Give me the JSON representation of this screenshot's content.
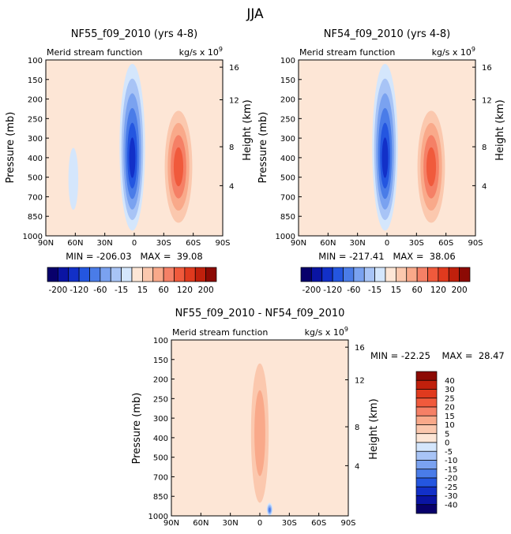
{
  "page_title": "JJA",
  "colors": {
    "neg": [
      "#08006b",
      "#0a14a3",
      "#1230c8",
      "#2456e0",
      "#4a7ce8",
      "#7aa2f0",
      "#a8c4f6",
      "#d4e6fc"
    ],
    "pos": [
      "#fde6d6",
      "#fbc8ae",
      "#f9a98a",
      "#f58066",
      "#f05a3c",
      "#e03a1e",
      "#c0200c",
      "#8c0a04"
    ]
  },
  "chart_data": [
    {
      "type": "contour",
      "title": "NF55_f09_2010 (yrs 4-8)",
      "left_string": "Merid stream function",
      "units_text": "kg/s x 10",
      "units_exp": "9",
      "ylabel": "Pressure (mb)",
      "ylabel_right": "Height (km)",
      "x_ticks": [
        "90N",
        "60N",
        "30N",
        "0",
        "30S",
        "60S",
        "90S"
      ],
      "xlim": [
        90,
        -90
      ],
      "y_ticks": [
        "100",
        "150",
        "200",
        "250",
        "300",
        "400",
        "500",
        "700",
        "850",
        "1000"
      ],
      "y_values": [
        100,
        150,
        200,
        250,
        300,
        400,
        500,
        700,
        850,
        1000
      ],
      "ylim": [
        1000,
        100
      ],
      "height_ticks": [
        "16",
        "12",
        "8",
        "4"
      ],
      "height_values": [
        16,
        12,
        8,
        4
      ],
      "min_max": "MIN = -206.03   MAX =  39.08",
      "colorbar_labels": [
        "-200",
        "-120",
        "-60",
        "-15",
        "15",
        "60",
        "120",
        "200"
      ],
      "features": [
        {
          "name": "northern-hadley-cell",
          "lat": 2,
          "p": 450,
          "value": -206.03,
          "lat_halfwidth": 13,
          "p_low": 110,
          "p_high": 960
        },
        {
          "name": "southern-cell",
          "lat": -45,
          "p": 420,
          "value": 39.08,
          "lat_halfwidth": 14,
          "p_low": 230,
          "p_high": 900
        },
        {
          "name": "northern-ferrel-cell",
          "lat": 62,
          "p": 500,
          "value": -8,
          "lat_halfwidth": 5,
          "p_low": 350,
          "p_high": 800
        }
      ]
    },
    {
      "type": "contour",
      "title": "NF54_f09_2010 (yrs 4-8)",
      "left_string": "Merid stream function",
      "units_text": "kg/s x 10",
      "units_exp": "9",
      "ylabel": "Pressure (mb)",
      "ylabel_right": "Height (km)",
      "x_ticks": [
        "90N",
        "60N",
        "30N",
        "0",
        "30S",
        "60S",
        "90S"
      ],
      "xlim": [
        90,
        -90
      ],
      "y_ticks": [
        "100",
        "150",
        "200",
        "250",
        "300",
        "400",
        "500",
        "700",
        "850",
        "1000"
      ],
      "y_values": [
        100,
        150,
        200,
        250,
        300,
        400,
        500,
        700,
        850,
        1000
      ],
      "ylim": [
        1000,
        100
      ],
      "height_ticks": [
        "16",
        "12",
        "8",
        "4"
      ],
      "height_values": [
        16,
        12,
        8,
        4
      ],
      "min_max": "MIN = -217.41   MAX =  38.06",
      "colorbar_labels": [
        "-200",
        "-120",
        "-60",
        "-15",
        "15",
        "60",
        "120",
        "200"
      ],
      "features": [
        {
          "name": "northern-hadley-cell",
          "lat": 2,
          "p": 450,
          "value": -217.41,
          "lat_halfwidth": 13,
          "p_low": 110,
          "p_high": 960
        },
        {
          "name": "southern-cell",
          "lat": -45,
          "p": 420,
          "value": 38.06,
          "lat_halfwidth": 14,
          "p_low": 230,
          "p_high": 900
        }
      ]
    },
    {
      "type": "contour",
      "title": "NF55_f09_2010 - NF54_f09_2010",
      "left_string": "Merid stream function",
      "units_text": "kg/s x 10",
      "units_exp": "9",
      "ylabel": "Pressure (mb)",
      "ylabel_right": "Height (km)",
      "x_ticks": [
        "90N",
        "60N",
        "30N",
        "0",
        "30S",
        "60S",
        "90S"
      ],
      "xlim": [
        90,
        -90
      ],
      "y_ticks": [
        "100",
        "150",
        "200",
        "250",
        "300",
        "400",
        "500",
        "700",
        "850",
        "1000"
      ],
      "y_values": [
        100,
        150,
        200,
        250,
        300,
        400,
        500,
        700,
        850,
        1000
      ],
      "ylim": [
        1000,
        100
      ],
      "height_ticks": [
        "16",
        "12",
        "8",
        "4"
      ],
      "height_values": [
        16,
        12,
        8,
        4
      ],
      "min_max": "MIN = -22.25    MAX =  28.47",
      "colorbar_labels": [
        "40",
        "30",
        "25",
        "20",
        "15",
        "10",
        "5",
        "0",
        "-5",
        "-10",
        "-15",
        "-20",
        "-25",
        "-30",
        "-40"
      ],
      "features": [
        {
          "name": "difference-maximum",
          "lat": 0,
          "p": 250,
          "value": 28.47,
          "lat_halfwidth": 5,
          "p_low": 180,
          "p_high": 330
        },
        {
          "name": "difference-positive-band",
          "lat": 0,
          "p": 500,
          "value": 10,
          "lat_halfwidth": 9,
          "p_low": 160,
          "p_high": 900
        },
        {
          "name": "difference-minimum",
          "lat": -10,
          "p": 950,
          "value": -22.25,
          "lat_halfwidth": 3,
          "p_low": 900,
          "p_high": 1000
        }
      ]
    }
  ]
}
